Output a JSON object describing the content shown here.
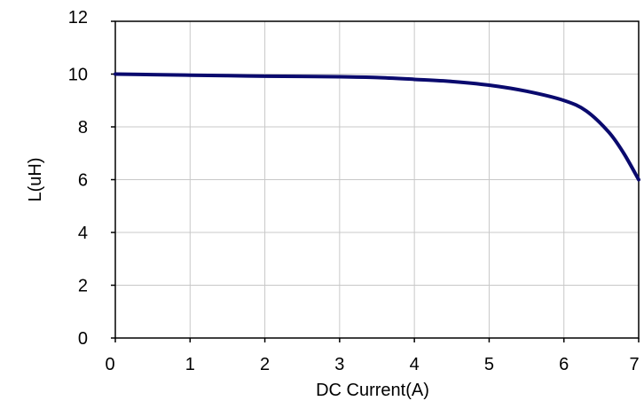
{
  "chart_data": {
    "type": "line",
    "title": "",
    "xlabel": "DC Current(A)",
    "ylabel": "L(uH)",
    "xlim": [
      0,
      7
    ],
    "ylim": [
      0,
      12
    ],
    "xticks": [
      0,
      1,
      2,
      3,
      4,
      5,
      6,
      7
    ],
    "yticks": [
      0,
      2,
      4,
      6,
      8,
      10,
      12
    ],
    "grid": true,
    "legend": "none",
    "series": [
      {
        "color": "#0a0a6e",
        "x": [
          0,
          0.5,
          1,
          1.5,
          2,
          2.5,
          3,
          3.5,
          4,
          4.5,
          5,
          5.5,
          6,
          6.3,
          6.6,
          6.8,
          7
        ],
        "y": [
          10.0,
          9.98,
          9.96,
          9.94,
          9.92,
          9.91,
          9.9,
          9.87,
          9.8,
          9.72,
          9.58,
          9.35,
          9.0,
          8.6,
          7.8,
          7.0,
          6.0
        ]
      }
    ]
  }
}
